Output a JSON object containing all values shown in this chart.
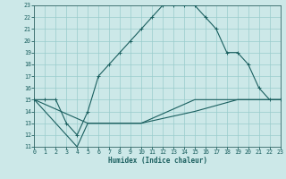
{
  "xlabel": "Humidex (Indice chaleur)",
  "background_color": "#cce8e8",
  "grid_color": "#99cccc",
  "line_color": "#1a5f5f",
  "xlim": [
    0,
    23
  ],
  "ylim": [
    11,
    23
  ],
  "xtick_labels": [
    "0",
    "1",
    "2",
    "3",
    "4",
    "5",
    "6",
    "7",
    "8",
    "9",
    "10",
    "11",
    "12",
    "13",
    "14",
    "15",
    "16",
    "17",
    "18",
    "19",
    "20",
    "21",
    "22",
    "23"
  ],
  "ytick_labels": [
    "11",
    "12",
    "13",
    "14",
    "15",
    "16",
    "17",
    "18",
    "19",
    "20",
    "21",
    "22",
    "23"
  ],
  "curve1_x": [
    0,
    1,
    2,
    3,
    4,
    5,
    6,
    7,
    8,
    9,
    10,
    11,
    12,
    13,
    14,
    15,
    16,
    17,
    18,
    19,
    20,
    21,
    22,
    23
  ],
  "curve1_y": [
    15,
    15,
    15,
    13,
    12,
    14,
    17,
    18,
    19,
    20,
    21,
    22,
    23,
    23,
    23,
    23,
    22,
    21,
    19,
    19,
    18,
    16,
    15,
    15
  ],
  "curve2_x": [
    0,
    2,
    3,
    4,
    5,
    10,
    15,
    19,
    20,
    21,
    22,
    23
  ],
  "curve2_y": [
    15,
    13,
    12,
    11,
    13,
    13,
    15,
    15,
    15,
    15,
    15,
    15
  ],
  "curve3_x": [
    0,
    5,
    10,
    15,
    19,
    20,
    21,
    22,
    23
  ],
  "curve3_y": [
    15,
    13,
    13,
    14,
    15,
    15,
    15,
    15,
    15
  ]
}
